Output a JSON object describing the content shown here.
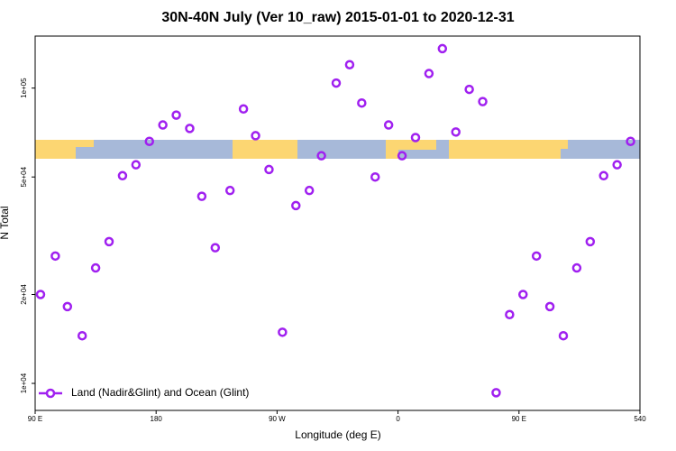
{
  "chart_data": {
    "type": "scatter",
    "title": "30N-40N July (Ver 10_raw)   2015-01-01 to 2020-12-31",
    "x_label": "Longitude (deg E)",
    "y_label": "N Total",
    "log_y": true,
    "legend": "bottom left",
    "xlim": [
      90,
      540
    ],
    "xticks": [
      {
        "value": 90,
        "label": "90 E"
      },
      180,
      {
        "value": 270,
        "label": "90 W"
      },
      {
        "value": 360,
        "label": "0"
      },
      {
        "value": 450,
        "label": "90 E"
      },
      540
    ],
    "ylim": [
      8100,
      150000
    ],
    "yticks": [
      {
        "value": 10000,
        "label": "1e+04"
      },
      {
        "value": 20000,
        "label": "2e+04"
      },
      {
        "value": 50000,
        "label": "5e+04"
      },
      {
        "value": 100000,
        "label": "1e+05"
      }
    ],
    "x": [
      94,
      105,
      114,
      125,
      135,
      145,
      155,
      165,
      175,
      185,
      195,
      205,
      214,
      224,
      235,
      245,
      254,
      264,
      274,
      284,
      294,
      303,
      314,
      324,
      333,
      343,
      353,
      363,
      373,
      383,
      393,
      403,
      413,
      423,
      433,
      443,
      453,
      463,
      473,
      483,
      493,
      503,
      513,
      523,
      533
    ],
    "series": [
      {
        "name": "Land (Nadir&Glint) and Ocean (Glint)",
        "color": "#a020f0",
        "values": [
          20000,
          27000,
          18200,
          14500,
          24600,
          30200,
          50500,
          55000,
          66000,
          75000,
          81000,
          73000,
          43000,
          28800,
          45000,
          85000,
          69000,
          53000,
          14900,
          40000,
          45000,
          59000,
          104000,
          120000,
          89000,
          50000,
          75000,
          59000,
          68000,
          112000,
          136000,
          71000,
          99000,
          90000,
          9300,
          17100,
          20000,
          27000,
          18200,
          14500,
          24600,
          30200,
          50500,
          55000,
          66000
        ]
      }
    ]
  }
}
